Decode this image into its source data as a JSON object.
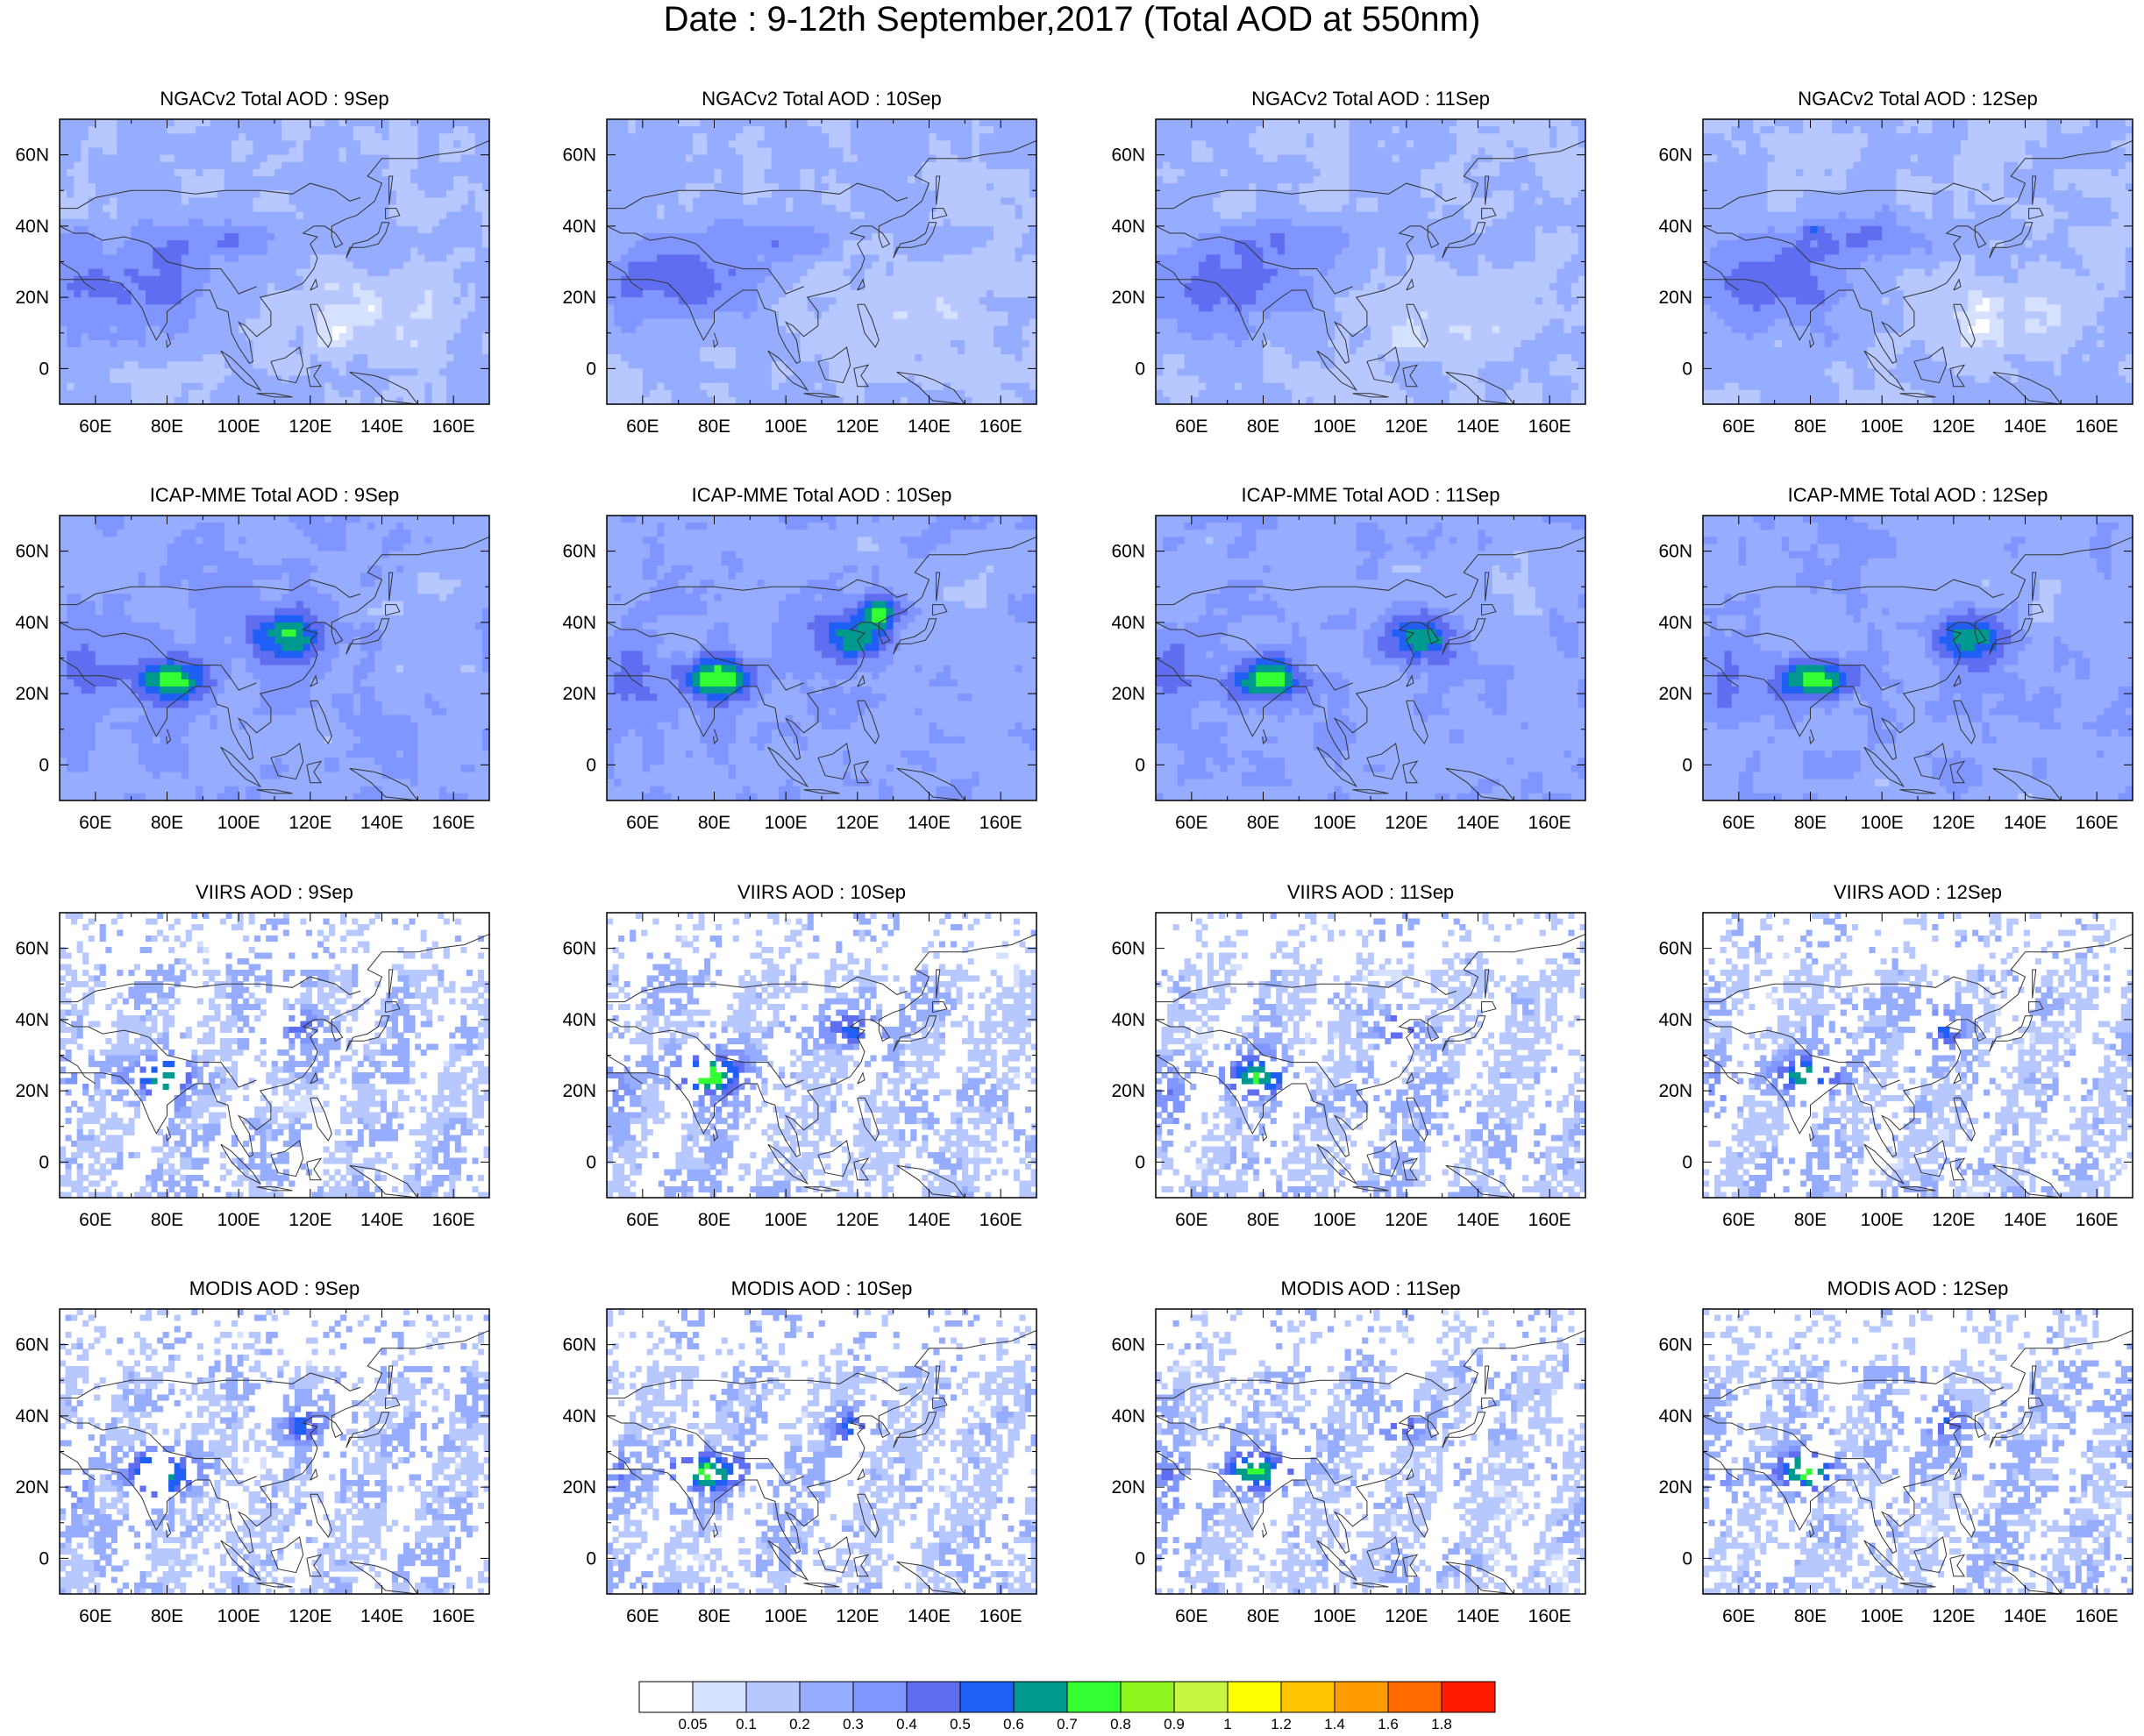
{
  "title": "Date : 9-12th September,2017 (Total AOD at 550nm)",
  "map": {
    "lon_range": [
      50,
      170
    ],
    "lat_range": [
      -10,
      70
    ],
    "lon_ticks": [
      60,
      80,
      100,
      120,
      140,
      160
    ],
    "lon_tick_labels": [
      "60E",
      "80E",
      "100E",
      "120E",
      "140E",
      "160E"
    ],
    "lat_ticks": [
      60,
      40,
      20,
      0
    ],
    "lat_tick_labels": [
      "60N",
      "40N",
      "20N",
      "0"
    ]
  },
  "rows": [
    {
      "source": "NGACv2",
      "type": "model",
      "panels": [
        {
          "title": "NGACv2 Total AOD : 9Sep"
        },
        {
          "title": "NGACv2 Total AOD : 10Sep"
        },
        {
          "title": "NGACv2 Total AOD : 11Sep"
        },
        {
          "title": "NGACv2 Total AOD : 12Sep"
        }
      ]
    },
    {
      "source": "ICAP-MME",
      "type": "model",
      "panels": [
        {
          "title": "ICAP-MME Total AOD : 9Sep"
        },
        {
          "title": "ICAP-MME Total AOD : 10Sep"
        },
        {
          "title": "ICAP-MME Total AOD : 11Sep"
        },
        {
          "title": "ICAP-MME Total AOD : 12Sep"
        }
      ]
    },
    {
      "source": "VIIRS",
      "type": "satellite",
      "panels": [
        {
          "title": "VIIRS AOD : 9Sep"
        },
        {
          "title": "VIIRS AOD : 10Sep"
        },
        {
          "title": "VIIRS AOD : 11Sep"
        },
        {
          "title": "VIIRS AOD : 12Sep"
        }
      ]
    },
    {
      "source": "MODIS",
      "type": "satellite",
      "panels": [
        {
          "title": "MODIS AOD : 9Sep"
        },
        {
          "title": "MODIS AOD : 10Sep"
        },
        {
          "title": "MODIS AOD : 11Sep"
        },
        {
          "title": "MODIS AOD : 12Sep"
        }
      ]
    }
  ],
  "colorbar": {
    "labels": [
      "0.05",
      "0.1",
      "0.2",
      "0.3",
      "0.4",
      "0.5",
      "0.6",
      "0.7",
      "0.8",
      "0.9",
      "1",
      "1.2",
      "1.4",
      "1.6",
      "1.8"
    ],
    "colors": [
      "#ffffff",
      "#d6e0ff",
      "#b7c7ff",
      "#96acff",
      "#7f95ff",
      "#5f6ef0",
      "#1f5ff5",
      "#00998f",
      "#33ff33",
      "#8ff51f",
      "#c8f542",
      "#ffff00",
      "#ffc400",
      "#ff9d00",
      "#ff6a00",
      "#ff1a00"
    ]
  }
}
